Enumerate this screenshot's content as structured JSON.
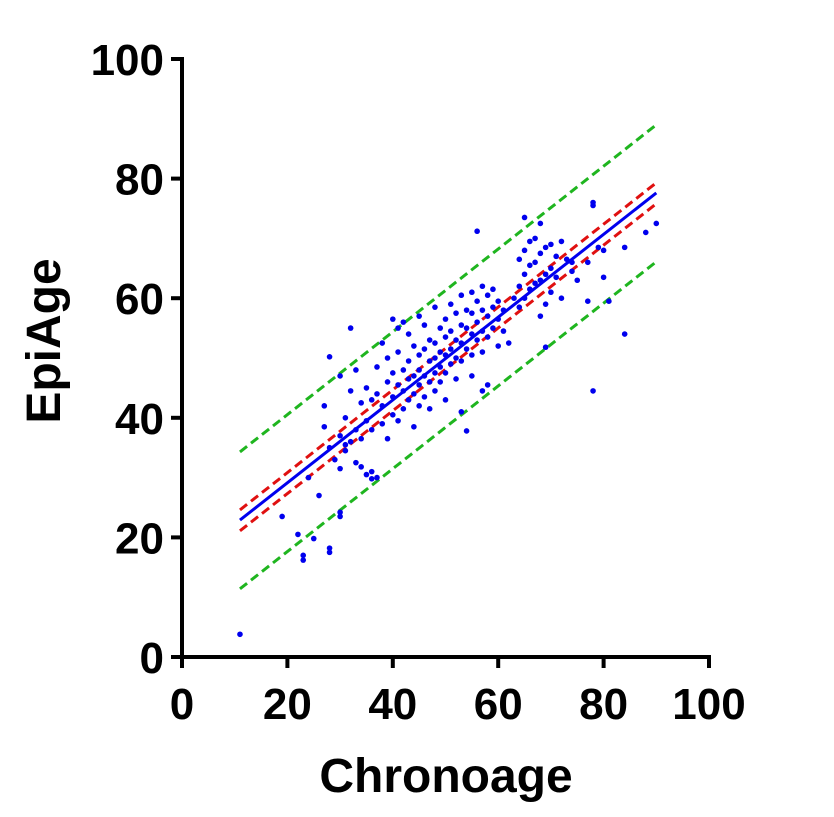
{
  "chart_data": {
    "type": "scatter",
    "xlabel": "Chronoage",
    "ylabel": "EpiAge",
    "xlim": [
      0,
      100
    ],
    "ylim": [
      0,
      100
    ],
    "xticks": [
      "0",
      "20",
      "40",
      "60",
      "80",
      "100"
    ],
    "yticks": [
      "0",
      "20",
      "40",
      "60",
      "80",
      "100"
    ],
    "grid": false,
    "legend": "none",
    "colors": {
      "points": "#0000ee",
      "fit": "#0000ee",
      "confidence": "#e01010",
      "prediction": "#1fb51f",
      "axis": "#000000"
    },
    "fit_line": {
      "x": [
        11,
        90
      ],
      "y": [
        22.9,
        77.6
      ]
    },
    "confidence_band": {
      "upper": {
        "x": [
          11,
          90
        ],
        "y": [
          24.6,
          79.3
        ]
      },
      "lower": {
        "x": [
          11,
          90
        ],
        "y": [
          21.1,
          75.8
        ]
      }
    },
    "prediction_band": {
      "upper": {
        "x": [
          11,
          90
        ],
        "y": [
          34.3,
          89.0
        ]
      },
      "lower": {
        "x": [
          11,
          90
        ],
        "y": [
          11.4,
          66.1
        ]
      }
    },
    "points": [
      [
        11,
        3.8
      ],
      [
        19,
        23.5
      ],
      [
        22,
        20.5
      ],
      [
        23,
        17.0
      ],
      [
        23,
        16.2
      ],
      [
        24,
        30.0
      ],
      [
        25,
        19.8
      ],
      [
        26,
        27.0
      ],
      [
        27,
        42.0
      ],
      [
        27,
        38.5
      ],
      [
        28,
        50.2
      ],
      [
        28,
        18.2
      ],
      [
        28,
        17.5
      ],
      [
        28,
        35.0
      ],
      [
        29,
        33.0
      ],
      [
        30,
        37.0
      ],
      [
        30,
        23.5
      ],
      [
        30,
        24.2
      ],
      [
        30,
        31.5
      ],
      [
        30,
        47.0
      ],
      [
        31,
        40.0
      ],
      [
        31,
        35.5
      ],
      [
        31,
        34.5
      ],
      [
        32,
        55.0
      ],
      [
        32,
        44.5
      ],
      [
        32,
        36.0
      ],
      [
        33,
        48.0
      ],
      [
        33,
        38.0
      ],
      [
        33,
        32.5
      ],
      [
        34,
        42.5
      ],
      [
        34,
        36.5
      ],
      [
        34,
        31.8
      ],
      [
        35,
        45.0
      ],
      [
        35,
        39.5
      ],
      [
        35,
        30.5
      ],
      [
        36,
        43.0
      ],
      [
        36,
        38.0
      ],
      [
        36,
        29.8
      ],
      [
        36,
        31.0
      ],
      [
        37,
        48.5
      ],
      [
        37,
        44.0
      ],
      [
        37,
        30.0
      ],
      [
        38,
        52.5
      ],
      [
        38,
        42.0
      ],
      [
        38,
        39.0
      ],
      [
        39,
        50.0
      ],
      [
        39,
        46.0
      ],
      [
        39,
        36.5
      ],
      [
        40,
        56.5
      ],
      [
        40,
        47.5
      ],
      [
        40,
        43.5
      ],
      [
        40,
        40.5
      ],
      [
        41,
        55.0
      ],
      [
        41,
        51.0
      ],
      [
        41,
        45.5
      ],
      [
        41,
        39.5
      ],
      [
        42,
        56.0
      ],
      [
        42,
        48.0
      ],
      [
        42,
        44.5
      ],
      [
        42,
        41.5
      ],
      [
        43,
        54.0
      ],
      [
        43,
        49.5
      ],
      [
        43,
        46.5
      ],
      [
        43,
        43.0
      ],
      [
        44,
        52.0
      ],
      [
        44,
        47.0
      ],
      [
        44,
        44.0
      ],
      [
        44,
        38.5
      ],
      [
        45,
        57.0
      ],
      [
        45,
        50.5
      ],
      [
        45,
        48.0
      ],
      [
        45,
        45.5
      ],
      [
        45,
        42.0
      ],
      [
        46,
        55.5
      ],
      [
        46,
        51.5
      ],
      [
        46,
        47.0
      ],
      [
        46,
        43.5
      ],
      [
        47,
        53.0
      ],
      [
        47,
        49.5
      ],
      [
        47,
        46.0
      ],
      [
        47,
        41.5
      ],
      [
        48,
        58.5
      ],
      [
        48,
        52.5
      ],
      [
        48,
        50.0
      ],
      [
        48,
        47.5
      ],
      [
        48,
        44.5
      ],
      [
        49,
        55.0
      ],
      [
        49,
        51.0
      ],
      [
        49,
        48.5
      ],
      [
        49,
        46.0
      ],
      [
        50,
        56.5
      ],
      [
        50,
        53.5
      ],
      [
        50,
        50.5
      ],
      [
        50,
        47.5
      ],
      [
        50,
        43.0
      ],
      [
        51,
        59.0
      ],
      [
        51,
        54.5
      ],
      [
        51,
        51.5
      ],
      [
        51,
        49.0
      ],
      [
        52,
        57.5
      ],
      [
        52,
        53.0
      ],
      [
        52,
        50.0
      ],
      [
        52,
        46.5
      ],
      [
        53,
        60.5
      ],
      [
        53,
        55.5
      ],
      [
        53,
        52.5
      ],
      [
        53,
        49.5
      ],
      [
        53,
        41.0
      ],
      [
        54,
        58.0
      ],
      [
        54,
        55.0
      ],
      [
        54,
        51.5
      ],
      [
        54,
        37.8
      ],
      [
        55,
        61.0
      ],
      [
        55,
        57.5
      ],
      [
        55,
        54.0
      ],
      [
        55,
        50.5
      ],
      [
        55,
        47.0
      ],
      [
        56,
        71.2
      ],
      [
        56,
        59.5
      ],
      [
        56,
        56.0
      ],
      [
        56,
        53.0
      ],
      [
        57,
        62.0
      ],
      [
        57,
        58.0
      ],
      [
        57,
        54.5
      ],
      [
        57,
        51.0
      ],
      [
        57,
        44.5
      ],
      [
        58,
        60.5
      ],
      [
        58,
        57.0
      ],
      [
        58,
        53.5
      ],
      [
        58,
        45.5
      ],
      [
        59,
        61.5
      ],
      [
        59,
        58.5
      ],
      [
        59,
        55.0
      ],
      [
        60,
        59.5
      ],
      [
        60,
        56.5
      ],
      [
        60,
        52.0
      ],
      [
        61,
        58.0
      ],
      [
        61,
        54.5
      ],
      [
        62,
        52.5
      ],
      [
        63,
        60.0
      ],
      [
        64,
        66.5
      ],
      [
        64,
        62.0
      ],
      [
        64,
        58.5
      ],
      [
        65,
        73.5
      ],
      [
        65,
        68.0
      ],
      [
        65,
        64.0
      ],
      [
        65,
        60.0
      ],
      [
        66,
        69.5
      ],
      [
        66,
        65.5
      ],
      [
        66,
        61.5
      ],
      [
        67,
        70.0
      ],
      [
        67,
        66.0
      ],
      [
        67,
        62.5
      ],
      [
        68,
        72.5
      ],
      [
        68,
        67.5
      ],
      [
        68,
        63.0
      ],
      [
        68,
        57.0
      ],
      [
        69,
        68.5
      ],
      [
        69,
        64.0
      ],
      [
        69,
        51.8
      ],
      [
        69,
        59.0
      ],
      [
        70,
        69.0
      ],
      [
        70,
        65.0
      ],
      [
        70,
        61.0
      ],
      [
        71,
        67.0
      ],
      [
        71,
        63.5
      ],
      [
        72,
        69.5
      ],
      [
        72,
        60.0
      ],
      [
        73,
        66.5
      ],
      [
        74,
        64.5
      ],
      [
        74,
        66.0
      ],
      [
        75,
        63.0
      ],
      [
        77,
        66.0
      ],
      [
        77,
        59.5
      ],
      [
        78,
        76.0
      ],
      [
        78,
        75.5
      ],
      [
        78,
        44.5
      ],
      [
        79,
        68.5
      ],
      [
        80,
        68.0
      ],
      [
        80,
        63.5
      ],
      [
        81,
        59.5
      ],
      [
        84,
        54.0
      ],
      [
        84,
        68.5
      ],
      [
        88,
        71.0
      ],
      [
        90,
        72.5
      ]
    ]
  }
}
